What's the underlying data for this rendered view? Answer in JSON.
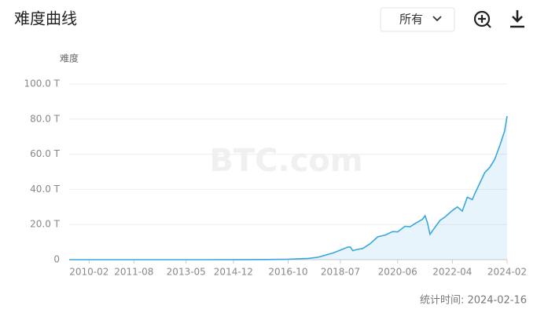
{
  "header": {
    "title": "难度曲线",
    "filter": "所有"
  },
  "chart_data": {
    "type": "line",
    "y_label": "难度",
    "watermark": "BTC.com",
    "x": [
      "2009-06",
      "2011-01",
      "2013-01",
      "2014-01",
      "2015-01",
      "2016-01",
      "2016-10",
      "2017-06",
      "2017-10",
      "2018-01",
      "2018-04",
      "2018-07",
      "2018-10",
      "2018-11",
      "2018-12",
      "2019-01",
      "2019-04",
      "2019-07",
      "2019-10",
      "2020-01",
      "2020-04",
      "2020-06",
      "2020-09",
      "2020-11",
      "2021-01",
      "2021-04",
      "2021-05",
      "2021-06",
      "2021-07",
      "2021-09",
      "2021-11",
      "2022-01",
      "2022-04",
      "2022-06",
      "2022-08",
      "2022-10",
      "2022-12",
      "2023-01",
      "2023-03",
      "2023-05",
      "2023-07",
      "2023-09",
      "2023-11",
      "2024-01",
      "2024-02"
    ],
    "values": [
      0,
      0,
      0.003,
      0.0015,
      0.04,
      0.1,
      0.25,
      0.7,
      1.4,
      2.6,
      3.8,
      5.5,
      7.2,
      7.2,
      5.1,
      5.6,
      6.4,
      9.1,
      13,
      14,
      16,
      15.8,
      19,
      18.7,
      20.6,
      23,
      25,
      21,
      14.4,
      18.4,
      22.3,
      24.3,
      28,
      30,
      27.7,
      35.6,
      34.2,
      37.6,
      43.5,
      49.5,
      52.4,
      57.1,
      64.7,
      73.2,
      81.7
    ],
    "color": "#3aa8dc",
    "xlim": [
      "2009-06",
      "2024-02"
    ],
    "xticks": [
      "2010-02",
      "2011-08",
      "2013-05",
      "2014-12",
      "2016-10",
      "2018-07",
      "2020-06",
      "2022-04",
      "2024-02"
    ],
    "ylim": [
      0,
      100
    ],
    "yticks": [
      0,
      {
        "value": 20,
        "label": "20.0 T"
      },
      {
        "value": 40,
        "label": "40.0 T"
      },
      {
        "value": 60,
        "label": "60.0 T"
      },
      {
        "value": 80,
        "label": "80.0 T"
      },
      {
        "value": 100,
        "label": "100.0 T"
      }
    ],
    "grid": true,
    "footnote": "统计时间: 2024-02-16"
  }
}
